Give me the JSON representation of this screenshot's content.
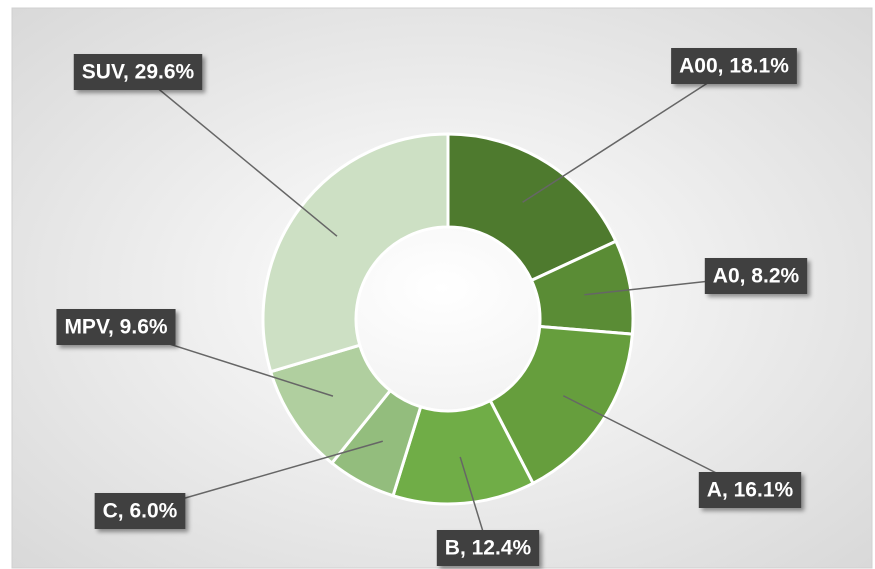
{
  "chart_data": {
    "type": "donut",
    "values": [
      18.1,
      8.2,
      16.1,
      12.4,
      6.0,
      9.6,
      29.6
    ],
    "value_labels": [
      "A00, 18.1%",
      "A0, 8.2%",
      "A, 16.1%",
      "B, 12.4%",
      "C, 6.0%",
      "MPV, 9.6%",
      "SUV, 29.6%"
    ],
    "colors": [
      "#4e7a2e",
      "#5a8c35",
      "#669e3d",
      "#70ad47",
      "#93bd7d",
      "#b0cf9f",
      "#cde0c4"
    ]
  }
}
